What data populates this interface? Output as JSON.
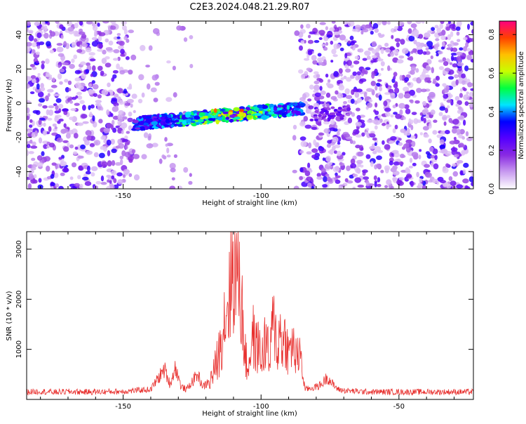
{
  "page": {
    "title": "C2E3.2024.048.21.29.R07"
  },
  "colors": {
    "snr_line": "#e8302e",
    "axes": "#000000",
    "background": "#ffffff"
  },
  "chart_data": [
    {
      "type": "heatmap",
      "title": "C2E3.2024.048.21.29.R07",
      "xlabel": "Height of straight line (km)",
      "ylabel": "Frequency (Hz)",
      "xlim": [
        -185,
        -23
      ],
      "ylim": [
        -50,
        48
      ],
      "x_ticks": [
        -150,
        -100,
        -50
      ],
      "y_ticks": [
        -40,
        -20,
        0,
        20,
        40
      ],
      "colorbar": {
        "label": "Normalized spectral amplitude",
        "range": [
          0,
          0.87
        ],
        "ticks": [
          0,
          0.2,
          0.4,
          0.6,
          0.8
        ],
        "tick_labels": [
          "0.0",
          "0.2",
          "0.4",
          "0.6",
          "0.8"
        ],
        "colormap": [
          "#ffffff",
          "#c99cf0",
          "#8a2be2",
          "#5500ff",
          "#0000ff",
          "#00e5ff",
          "#00ff40",
          "#c8ff00",
          "#ffc000",
          "#ff4000",
          "#ff0080"
        ]
      },
      "features": [
        {
          "x_range": [
            -146,
            -85
          ],
          "frequency_hz": [
            -12,
            -2
          ],
          "peak_amplitude": 0.87,
          "peak_height_km": -110
        }
      ]
    },
    {
      "type": "line",
      "xlabel": "Height of straight line (km)",
      "ylabel": "SNR (10 * v/v)",
      "xlim": [
        -185,
        -23
      ],
      "ylim": [
        0,
        3350
      ],
      "x_ticks": [
        -150,
        -100,
        -50
      ],
      "y_ticks": [
        1000,
        2000,
        3000
      ],
      "series": [
        {
          "color": "#e8302e",
          "x": [
            -185,
            -180,
            -175,
            -170,
            -165,
            -160,
            -155,
            -150,
            -145,
            -140,
            -137,
            -135,
            -133,
            -131,
            -129,
            -127,
            -125,
            -123,
            -121,
            -119,
            -117,
            -115,
            -114,
            -113,
            -112,
            -111,
            -110,
            -109,
            -108,
            -107,
            -106,
            -105,
            -104,
            -103,
            -102,
            -101,
            -100,
            -99,
            -98,
            -97,
            -96,
            -95,
            -94,
            -93,
            -92,
            -91,
            -90,
            -89,
            -88,
            -87,
            -86,
            -85,
            -84,
            -80,
            -78,
            -76,
            -74,
            -72,
            -70,
            -65,
            -60,
            -55,
            -50,
            -45,
            -40,
            -35,
            -30,
            -25,
            -23
          ],
          "values": [
            150,
            160,
            145,
            155,
            150,
            150,
            155,
            160,
            180,
            200,
            450,
            600,
            300,
            650,
            250,
            200,
            350,
            500,
            250,
            350,
            700,
            1200,
            1700,
            2100,
            2400,
            2800,
            3350,
            3000,
            3250,
            2200,
            1300,
            700,
            1100,
            1600,
            1200,
            1400,
            900,
            1300,
            1500,
            800,
            1700,
            1800,
            1200,
            1700,
            1300,
            1600,
            1000,
            1400,
            1200,
            900,
            1200,
            500,
            200,
            250,
            300,
            450,
            300,
            200,
            180,
            160,
            150,
            150,
            150,
            150,
            150,
            150,
            150,
            150,
            150
          ]
        }
      ]
    }
  ]
}
